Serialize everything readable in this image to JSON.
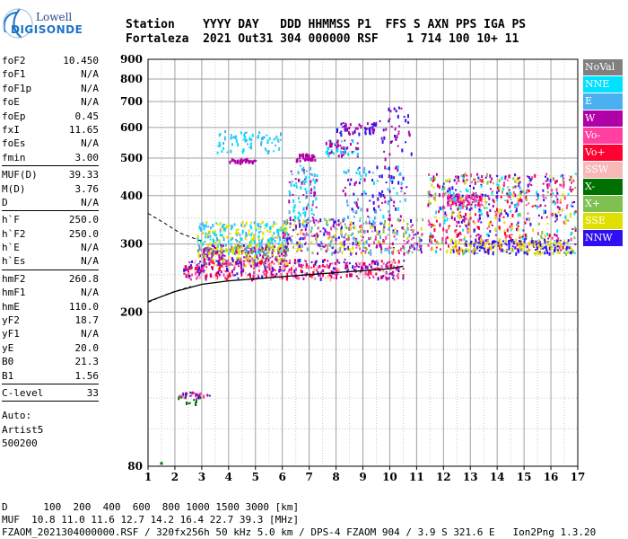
{
  "logo": {
    "line1": "Lowell",
    "line2": "DIGISONDE"
  },
  "header": {
    "labels": "Station    YYYY DAY   DDD HHMMSS P1  FFS S AXN PPS IGA PS",
    "values": "Fortaleza  2021 Out31 304 000000 RSF    1 714 100 10+ 11"
  },
  "params": {
    "g1": [
      {
        "name": "foF2",
        "value": "10.450"
      },
      {
        "name": "foF1",
        "value": "N/A"
      },
      {
        "name": "foF1p",
        "value": "N/A"
      },
      {
        "name": "foE",
        "value": "N/A"
      },
      {
        "name": "foEp",
        "value": "0.45"
      },
      {
        "name": "fxI",
        "value": "11.65"
      },
      {
        "name": "foEs",
        "value": "N/A"
      },
      {
        "name": "fmin",
        "value": "3.00"
      }
    ],
    "g2": [
      {
        "name": "MUF(D)",
        "value": "39.33"
      },
      {
        "name": "M(D)",
        "value": "3.76"
      },
      {
        "name": "D",
        "value": "N/A"
      }
    ],
    "g3": [
      {
        "name": "h`F",
        "value": "250.0"
      },
      {
        "name": "h`F2",
        "value": "250.0"
      },
      {
        "name": "h`E",
        "value": "N/A"
      },
      {
        "name": "h`Es",
        "value": "N/A"
      }
    ],
    "g4": [
      {
        "name": "hmF2",
        "value": "260.8"
      },
      {
        "name": "hmF1",
        "value": "N/A"
      },
      {
        "name": "hmE",
        "value": "110.0"
      },
      {
        "name": "yF2",
        "value": "18.7"
      },
      {
        "name": "yF1",
        "value": "N/A"
      },
      {
        "name": "yE",
        "value": "20.0"
      },
      {
        "name": "B0",
        "value": "21.3"
      },
      {
        "name": "B1",
        "value": "1.56"
      }
    ],
    "clevel": {
      "name": "C-level",
      "value": "33"
    },
    "auto": [
      "Auto:",
      "Artist5",
      "500200"
    ]
  },
  "legend": [
    {
      "label": "NoVal",
      "color": "#808080"
    },
    {
      "label": "NNE",
      "color": "#00e0ff"
    },
    {
      "label": "E",
      "color": "#4ab0f0"
    },
    {
      "label": "W",
      "color": "#b000a8"
    },
    {
      "label": "Vo-",
      "color": "#ff40a0"
    },
    {
      "label": "Vo+",
      "color": "#ff0030"
    },
    {
      "label": "SSW",
      "color": "#f8b8b8"
    },
    {
      "label": "X-",
      "color": "#007000"
    },
    {
      "label": "X+",
      "color": "#80c050"
    },
    {
      "label": "SSE",
      "color": "#e0e000"
    },
    {
      "label": "NNW",
      "color": "#3010f0"
    }
  ],
  "chart_data": {
    "type": "scatter",
    "xlim": [
      1,
      17
    ],
    "ylim": [
      80,
      900
    ],
    "x_ticks": [
      "1",
      "2",
      "3",
      "4",
      "5",
      "6",
      "7",
      "8",
      "9",
      "10",
      "11",
      "12",
      "13",
      "14",
      "15",
      "16",
      "17"
    ],
    "y_ticks": [
      "80",
      "200",
      "300",
      "400",
      "500",
      "600",
      "700",
      "800",
      "900"
    ],
    "y_scale": "log",
    "grid": true,
    "profile_line": [
      [
        1.0,
        213
      ],
      [
        2.0,
        226
      ],
      [
        3.0,
        236
      ],
      [
        4.0,
        241
      ],
      [
        5.0,
        244
      ],
      [
        6.0,
        247
      ],
      [
        7.0,
        250
      ],
      [
        8.0,
        253
      ],
      [
        9.0,
        256
      ],
      [
        10.0,
        259
      ],
      [
        10.5,
        263
      ]
    ],
    "profile_dashed": [
      [
        1.0,
        360
      ],
      [
        1.6,
        340
      ],
      [
        2.2,
        320
      ],
      [
        3.0,
        305
      ]
    ],
    "profile_lower_dashed": [
      [
        1.0,
        212
      ],
      [
        1.8,
        224
      ],
      [
        2.6,
        233
      ]
    ],
    "trace_clusters": [
      {
        "x": [
          1.0,
          1.5
        ],
        "y": [
          80,
          100
        ],
        "n": 0,
        "colors": []
      },
      {
        "x": [
          2.0,
          3.3
        ],
        "y": [
          120,
          125
        ],
        "n": 28,
        "colors": [
          "#b000a8",
          "#007000",
          "#ff40a0",
          "#3010f0"
        ]
      },
      {
        "x": [
          2.2,
          3.0
        ],
        "y": [
          115,
          120
        ],
        "n": 8,
        "colors": [
          "#007000"
        ]
      },
      {
        "x": [
          2.8,
          6.2
        ],
        "y": [
          285,
          345
        ],
        "n": 320,
        "colors": [
          "#4ab0f0",
          "#00e0ff",
          "#e0e000"
        ]
      },
      {
        "x": [
          2.8,
          6.2
        ],
        "y": [
          265,
          300
        ],
        "n": 260,
        "colors": [
          "#e0e000",
          "#b000a8",
          "#808080"
        ]
      },
      {
        "x": [
          2.3,
          10.5
        ],
        "y": [
          245,
          275
        ],
        "n": 500,
        "colors": [
          "#b000a8",
          "#ff0030",
          "#ff40a0",
          "#f8b8b8",
          "#3010f0"
        ]
      },
      {
        "x": [
          3.5,
          6.0
        ],
        "y": [
          520,
          590
        ],
        "n": 70,
        "colors": [
          "#4ab0f0",
          "#00e0ff"
        ]
      },
      {
        "x": [
          4.0,
          5.0
        ],
        "y": [
          490,
          500
        ],
        "n": 30,
        "colors": [
          "#b000a8"
        ]
      },
      {
        "x": [
          6.2,
          7.3
        ],
        "y": [
          350,
          480
        ],
        "n": 90,
        "colors": [
          "#4ab0f0",
          "#00e0ff",
          "#b000a8"
        ]
      },
      {
        "x": [
          6.5,
          7.2
        ],
        "y": [
          495,
          515
        ],
        "n": 40,
        "colors": [
          "#b000a8"
        ]
      },
      {
        "x": [
          7.6,
          8.8
        ],
        "y": [
          510,
          560
        ],
        "n": 60,
        "colors": [
          "#b000a8",
          "#00e0ff"
        ]
      },
      {
        "x": [
          8.0,
          9.5
        ],
        "y": [
          580,
          620
        ],
        "n": 55,
        "colors": [
          "#3010f0",
          "#b000a8"
        ]
      },
      {
        "x": [
          6.0,
          11.2
        ],
        "y": [
          285,
          350
        ],
        "n": 420,
        "colors": [
          "#b000a8",
          "#ff40a0",
          "#e0e000",
          "#3010f0",
          "#4ab0f0",
          "#80c050"
        ]
      },
      {
        "x": [
          8.2,
          10.6
        ],
        "y": [
          350,
          480
        ],
        "n": 120,
        "colors": [
          "#3010f0",
          "#b000a8",
          "#00e0ff",
          "#4ab0f0"
        ]
      },
      {
        "x": [
          9.6,
          10.8
        ],
        "y": [
          500,
          680
        ],
        "n": 40,
        "colors": [
          "#3010f0",
          "#b000a8"
        ]
      },
      {
        "x": [
          12.1,
          13.4
        ],
        "y": [
          380,
          405
        ],
        "n": 90,
        "colors": [
          "#ff40a0",
          "#b000a8"
        ]
      },
      {
        "x": [
          11.4,
          16.9
        ],
        "y": [
          285,
          460
        ],
        "n": 700,
        "colors": [
          "#3010f0",
          "#e0e000",
          "#b000a8",
          "#ff40a0",
          "#80c050",
          "#00e0ff",
          "#ff0030"
        ]
      },
      {
        "x": [
          12.2,
          16.8
        ],
        "y": [
          285,
          310
        ],
        "n": 200,
        "colors": [
          "#3010f0",
          "#e0e000"
        ]
      }
    ]
  },
  "footer": {
    "line1": "D      100  200  400  600  800 1000 1500 3000 [km]",
    "line2": "MUF  10.8 11.0 11.6 12.7 14.2 16.4 22.7 39.3 [MHz]",
    "line3": "FZAOM_2021304000000.RSF / 320fx256h 50 kHz 5.0 km / DPS-4 FZAOM 904 / 3.9 S 321.6 E   Ion2Png 1.3.20"
  }
}
